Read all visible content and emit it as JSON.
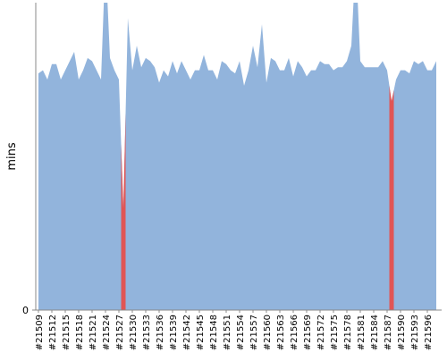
{
  "chart_data": {
    "type": "area",
    "y_label": "mins",
    "categories": [
      "#21509",
      null,
      null,
      "#21512",
      null,
      null,
      "#21515",
      null,
      null,
      "#21518",
      null,
      null,
      "#21521",
      null,
      null,
      "#21524",
      null,
      null,
      "#21527",
      null,
      null,
      "#21530",
      null,
      null,
      "#21533",
      null,
      null,
      "#21536",
      null,
      null,
      "#21539",
      null,
      null,
      "#21542",
      null,
      null,
      "#21545",
      null,
      null,
      "#21548",
      null,
      null,
      "#21551",
      null,
      null,
      "#21554",
      null,
      null,
      "#21557",
      null,
      null,
      "#21560",
      null,
      null,
      "#21563",
      null,
      null,
      "#21566",
      null,
      null,
      "#21569",
      null,
      null,
      "#21572",
      null,
      null,
      "#21575",
      null,
      null,
      "#21578",
      null,
      null,
      "#21581",
      null,
      null,
      "#21584",
      null,
      null,
      "#21587",
      null,
      null,
      "#21590",
      null,
      null,
      "#21593",
      null,
      null,
      "#21596",
      null,
      null
    ],
    "values": [
      77,
      78,
      75,
      80,
      80,
      75,
      78,
      81,
      84,
      75,
      78,
      82,
      81,
      78,
      75,
      115,
      82,
      78,
      75,
      33,
      95,
      78,
      86,
      79,
      82,
      81,
      79,
      74,
      78,
      76,
      81,
      77,
      81,
      78,
      75,
      78,
      78,
      83,
      78,
      78,
      75,
      81,
      80,
      78,
      77,
      81,
      73,
      78,
      86,
      79,
      93,
      74,
      82,
      81,
      78,
      78,
      82,
      76,
      81,
      79,
      76,
      78,
      78,
      81,
      80,
      80,
      78,
      79,
      79,
      81,
      86,
      115,
      81,
      79,
      79,
      79,
      79,
      81,
      78,
      68,
      75,
      78,
      78,
      77,
      81,
      80,
      81,
      78,
      78,
      81
    ],
    "failed": [
      19,
      79
    ],
    "color": "#92b4dc",
    "failed_color": "#e05555",
    "ylim": [
      0,
      100
    ],
    "yticks": [
      0
    ]
  }
}
